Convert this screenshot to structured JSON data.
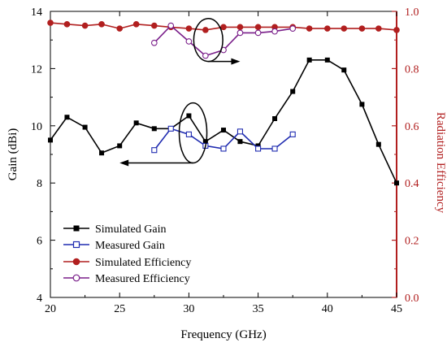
{
  "colors": {
    "simulated_gain": "#000000",
    "measured_gain": "#1f2bb0",
    "simulated_efficiency": "#b11f1f",
    "measured_efficiency": "#7a1f8a",
    "right_axis": "#b11f1f"
  },
  "chart_data": {
    "type": "line",
    "title": "",
    "xlabel": "Frequency (GHz)",
    "ylabel": "Gain (dBi)",
    "y2label": "Radiation Efficiency",
    "xlim": [
      20,
      45
    ],
    "ylim": [
      4,
      14
    ],
    "y2lim": [
      0.0,
      1.0
    ],
    "xticks": [
      "20",
      "25",
      "30",
      "35",
      "40",
      "45"
    ],
    "yticks": [
      "4",
      "6",
      "8",
      "10",
      "12",
      "14"
    ],
    "y2ticks": [
      "0.0",
      "0.2",
      "0.4",
      "0.6",
      "0.8",
      "1.0"
    ],
    "legend_position": "bottom-left",
    "series": [
      {
        "name": "Simulated Gain",
        "axis": "left",
        "marker": "filled-square",
        "x": [
          20.0,
          21.2,
          22.5,
          23.7,
          25.0,
          26.2,
          27.5,
          28.7,
          30.0,
          31.2,
          32.5,
          33.7,
          35.0,
          36.2,
          37.5,
          38.7,
          40.0,
          41.2,
          42.5,
          43.7,
          45.0
        ],
        "y": [
          9.5,
          10.3,
          9.95,
          9.05,
          9.3,
          10.1,
          9.9,
          9.9,
          10.35,
          9.45,
          9.85,
          9.45,
          9.3,
          10.25,
          11.2,
          12.3,
          12.3,
          11.95,
          10.75,
          9.35,
          8.0
        ]
      },
      {
        "name": "Measured Gain",
        "axis": "left",
        "marker": "open-square",
        "x": [
          27.5,
          28.7,
          30.0,
          31.2,
          32.5,
          33.7,
          35.0,
          36.2,
          37.5
        ],
        "y": [
          9.15,
          9.9,
          9.7,
          9.3,
          9.2,
          9.8,
          9.2,
          9.2,
          9.7
        ]
      },
      {
        "name": "Simulated Efficiency",
        "axis": "right",
        "marker": "filled-circle",
        "x": [
          20.0,
          21.2,
          22.5,
          23.7,
          25.0,
          26.2,
          27.5,
          28.7,
          30.0,
          31.2,
          32.5,
          33.7,
          35.0,
          36.2,
          37.5,
          38.7,
          40.0,
          41.2,
          42.5,
          43.7,
          45.0
        ],
        "y": [
          0.96,
          0.955,
          0.95,
          0.955,
          0.94,
          0.955,
          0.95,
          0.945,
          0.94,
          0.935,
          0.945,
          0.945,
          0.945,
          0.945,
          0.945,
          0.94,
          0.94,
          0.94,
          0.94,
          0.94,
          0.935
        ]
      },
      {
        "name": "Measured Efficiency",
        "axis": "right",
        "marker": "open-circle",
        "x": [
          27.5,
          28.7,
          30.0,
          31.2,
          32.5,
          33.7,
          35.0,
          36.2,
          37.5
        ],
        "y": [
          0.89,
          0.95,
          0.895,
          0.845,
          0.865,
          0.925,
          0.925,
          0.93,
          0.94
        ]
      }
    ],
    "annotations": [
      {
        "shape": "ellipse",
        "cx": 31.4,
        "cy": 0.9,
        "rx_ghz": 1.05,
        "ry_axis": 0.075,
        "axis": "right",
        "arrow_to_x": 33.7
      },
      {
        "shape": "ellipse",
        "cx": 30.3,
        "cy": 9.75,
        "rx_ghz": 1.0,
        "ry_axis": 1.05,
        "axis": "left",
        "arrow_to_x": 25.0
      }
    ]
  }
}
